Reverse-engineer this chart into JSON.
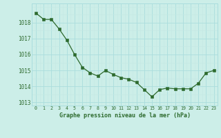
{
  "x": [
    0,
    1,
    2,
    3,
    4,
    5,
    6,
    7,
    8,
    9,
    10,
    11,
    12,
    13,
    14,
    15,
    16,
    17,
    18,
    19,
    20,
    21,
    22,
    23
  ],
  "y": [
    1018.6,
    1018.2,
    1018.2,
    1017.6,
    1016.9,
    1016.0,
    1015.2,
    1014.85,
    1014.65,
    1015.0,
    1014.75,
    1014.55,
    1014.45,
    1014.25,
    1013.8,
    1013.35,
    1013.8,
    1013.9,
    1013.85,
    1013.85,
    1013.85,
    1014.2,
    1014.85,
    1015.0
  ],
  "line_color": "#2d6a2d",
  "marker_color": "#2d6a2d",
  "bg_color": "#cceee8",
  "grid_major_color": "#aadddd",
  "grid_minor_color": "#c4e8e4",
  "xlabel": "Graphe pression niveau de la mer (hPa)",
  "xlabel_color": "#2d6a2d",
  "tick_color": "#2d6a2d",
  "ylim": [
    1012.8,
    1019.2
  ],
  "yticks": [
    1013,
    1014,
    1015,
    1016,
    1017,
    1018
  ],
  "xticks": [
    0,
    1,
    2,
    3,
    4,
    5,
    6,
    7,
    8,
    9,
    10,
    11,
    12,
    13,
    14,
    15,
    16,
    17,
    18,
    19,
    20,
    21,
    22,
    23
  ],
  "xtick_labels": [
    "0",
    "1",
    "2",
    "3",
    "4",
    "5",
    "6",
    "7",
    "8",
    "9",
    "10",
    "11",
    "12",
    "13",
    "14",
    "15",
    "16",
    "17",
    "18",
    "19",
    "20",
    "21",
    "22",
    "23"
  ]
}
